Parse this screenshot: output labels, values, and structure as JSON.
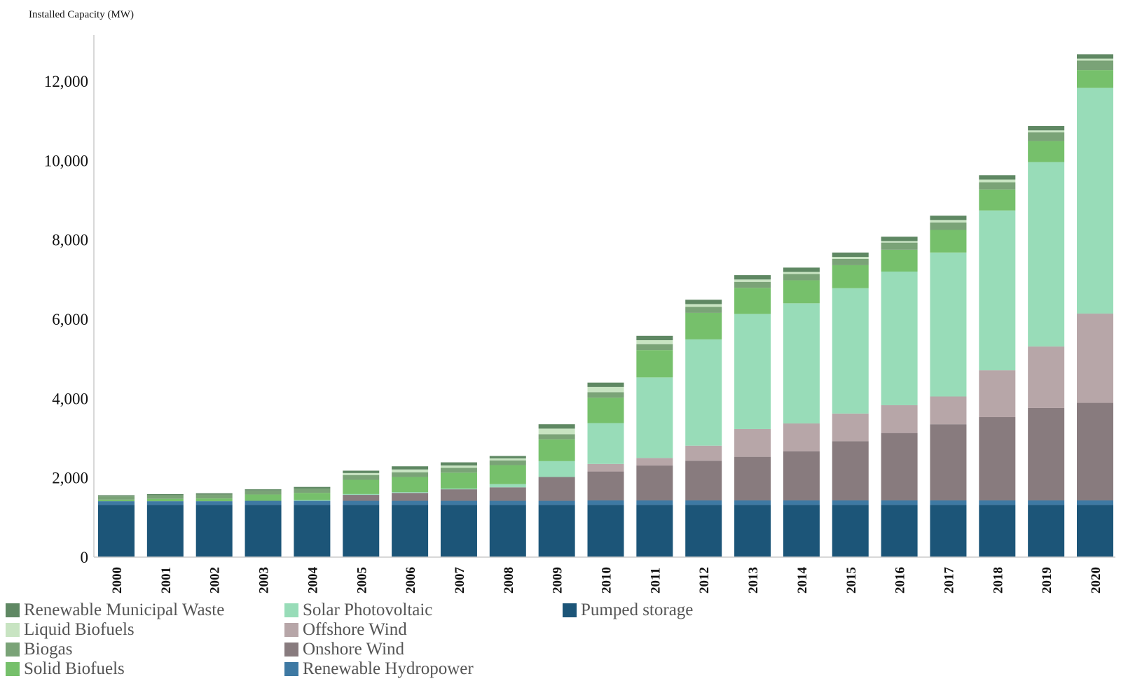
{
  "chart_data": {
    "type": "bar",
    "stacked": true,
    "title": "",
    "ylabel": "Installed Capacity (MW)",
    "xlabel": "",
    "ylim": [
      0,
      13000
    ],
    "y_ticks": [
      0,
      2000,
      4000,
      6000,
      8000,
      10000,
      12000
    ],
    "y_tick_labels": [
      "0",
      "2,000",
      "4,000",
      "6,000",
      "8,000",
      "10,000",
      "12,000"
    ],
    "categories": [
      "2000",
      "2001",
      "2002",
      "2003",
      "2004",
      "2005",
      "2006",
      "2007",
      "2008",
      "2009",
      "2010",
      "2011",
      "2012",
      "2013",
      "2014",
      "2015",
      "2016",
      "2017",
      "2018",
      "2019",
      "2020"
    ],
    "grid": false,
    "legend_position": "bottom",
    "series": [
      {
        "name": "Pumped storage",
        "color": "#1c5578",
        "values": [
          1320,
          1320,
          1320,
          1320,
          1320,
          1320,
          1320,
          1320,
          1320,
          1320,
          1320,
          1320,
          1320,
          1320,
          1320,
          1320,
          1320,
          1320,
          1320,
          1320,
          1320
        ]
      },
      {
        "name": "Renewable Hydropower",
        "color": "#3e79a3",
        "values": [
          90,
          90,
          90,
          100,
          100,
          100,
          100,
          100,
          100,
          100,
          110,
          110,
          110,
          110,
          110,
          110,
          110,
          110,
          110,
          110,
          110
        ]
      },
      {
        "name": "Onshore Wind",
        "color": "#887b7e",
        "values": [
          0,
          0,
          0,
          0,
          0,
          150,
          200,
          290,
          340,
          600,
          730,
          880,
          1000,
          1100,
          1240,
          1490,
          1700,
          1920,
          2100,
          2330,
          2460
        ]
      },
      {
        "name": "Offshore Wind",
        "color": "#b7a6a8",
        "values": [
          0,
          0,
          0,
          0,
          0,
          0,
          0,
          0,
          0,
          0,
          190,
          190,
          380,
          700,
          700,
          700,
          700,
          700,
          1180,
          1550,
          2250
        ]
      },
      {
        "name": "Solar Photovoltaic",
        "color": "#98dcb8",
        "values": [
          0,
          0,
          0,
          0,
          20,
          20,
          20,
          20,
          80,
          400,
          1030,
          2030,
          2680,
          2900,
          3030,
          3160,
          3370,
          3630,
          4030,
          4650,
          5690
        ]
      },
      {
        "name": "Solid Biofuels",
        "color": "#76c06b",
        "values": [
          40,
          60,
          70,
          160,
          180,
          360,
          380,
          400,
          480,
          550,
          640,
          690,
          670,
          660,
          580,
          580,
          550,
          570,
          530,
          530,
          450
        ]
      },
      {
        "name": "Biogas",
        "color": "#7aa377",
        "values": [
          80,
          90,
          100,
          100,
          110,
          120,
          120,
          120,
          120,
          130,
          140,
          150,
          150,
          150,
          160,
          160,
          180,
          190,
          180,
          220,
          240
        ]
      },
      {
        "name": "Liquid Biofuels",
        "color": "#c8e4c2",
        "values": [
          0,
          0,
          0,
          0,
          0,
          50,
          70,
          60,
          50,
          140,
          130,
          100,
          70,
          60,
          50,
          50,
          40,
          60,
          70,
          50,
          50
        ]
      },
      {
        "name": "Renewable Municipal Waste",
        "color": "#5f8863",
        "values": [
          30,
          30,
          30,
          30,
          40,
          60,
          80,
          80,
          60,
          110,
          110,
          110,
          110,
          110,
          110,
          110,
          110,
          110,
          110,
          110,
          110
        ]
      }
    ]
  },
  "legend": {
    "items": [
      {
        "label": "Renewable Municipal Waste",
        "color": "#5f8863"
      },
      {
        "label": "Liquid Biofuels",
        "color": "#c8e4c2"
      },
      {
        "label": "Biogas",
        "color": "#7aa377"
      },
      {
        "label": "Solid Biofuels",
        "color": "#76c06b"
      },
      {
        "label": "Solar Photovoltaic",
        "color": "#98dcb8"
      },
      {
        "label": "Offshore Wind",
        "color": "#b7a6a8"
      },
      {
        "label": "Onshore Wind",
        "color": "#887b7e"
      },
      {
        "label": "Renewable Hydropower",
        "color": "#3e79a3"
      },
      {
        "label": "Pumped storage",
        "color": "#1c5578"
      }
    ]
  }
}
